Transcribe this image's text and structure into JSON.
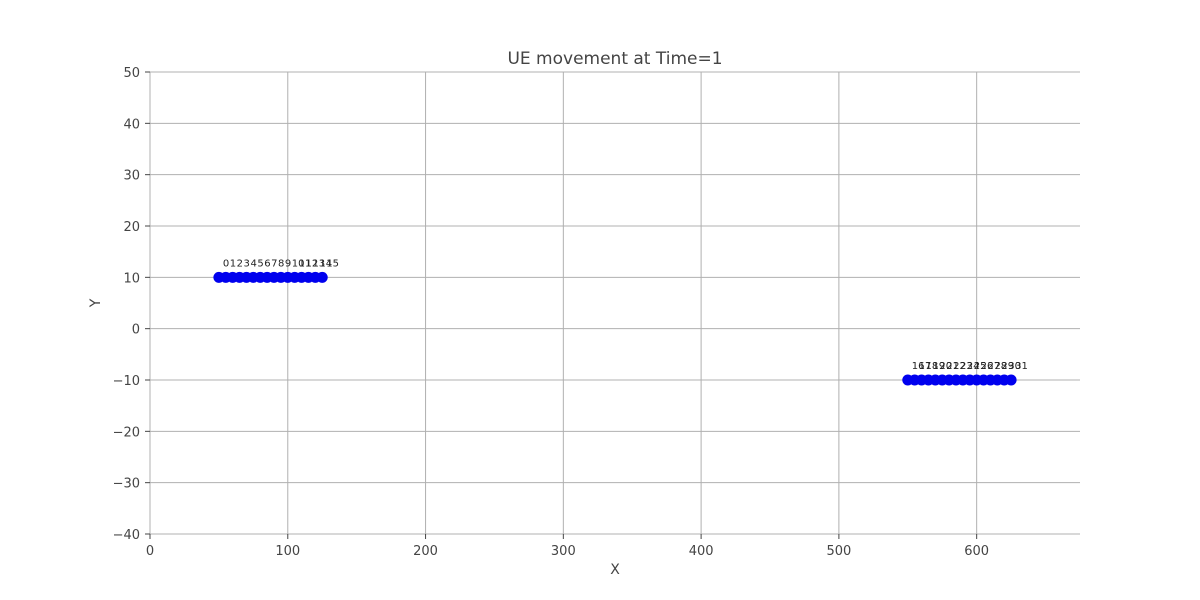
{
  "chart_data": {
    "type": "scatter",
    "title": "UE movement at Time=1",
    "xlabel": "X",
    "ylabel": "Y",
    "xlim": [
      0,
      675
    ],
    "ylim": [
      -40,
      50
    ],
    "x_ticks": [
      0,
      100,
      200,
      300,
      400,
      500,
      600
    ],
    "y_ticks": [
      -40,
      -30,
      -20,
      -10,
      0,
      10,
      20,
      30,
      40,
      50
    ],
    "y_tick_labels": [
      "−40",
      "−30",
      "−20",
      "−10",
      "0",
      "10",
      "20",
      "30",
      "40",
      "50"
    ],
    "grid": true,
    "point_color": "#0000ee",
    "series": [
      {
        "x": [
          50,
          55,
          60,
          65,
          70,
          75,
          80,
          85,
          90,
          95,
          100,
          105,
          110,
          115,
          120,
          125
        ],
        "y": [
          10,
          10,
          10,
          10,
          10,
          10,
          10,
          10,
          10,
          10,
          10,
          10,
          10,
          10,
          10,
          10
        ],
        "labels": [
          "0",
          "1",
          "2",
          "3",
          "4",
          "5",
          "6",
          "7",
          "8",
          "9",
          "10",
          "11",
          "12",
          "13",
          "14",
          "15"
        ]
      },
      {
        "x": [
          550,
          555,
          560,
          565,
          570,
          575,
          580,
          585,
          590,
          595,
          600,
          605,
          610,
          615,
          620,
          625
        ],
        "y": [
          -10,
          -10,
          -10,
          -10,
          -10,
          -10,
          -10,
          -10,
          -10,
          -10,
          -10,
          -10,
          -10,
          -10,
          -10,
          -10
        ],
        "labels": [
          "16",
          "17",
          "18",
          "19",
          "20",
          "21",
          "22",
          "23",
          "24",
          "25",
          "26",
          "27",
          "28",
          "29",
          "30",
          "31"
        ]
      }
    ]
  }
}
